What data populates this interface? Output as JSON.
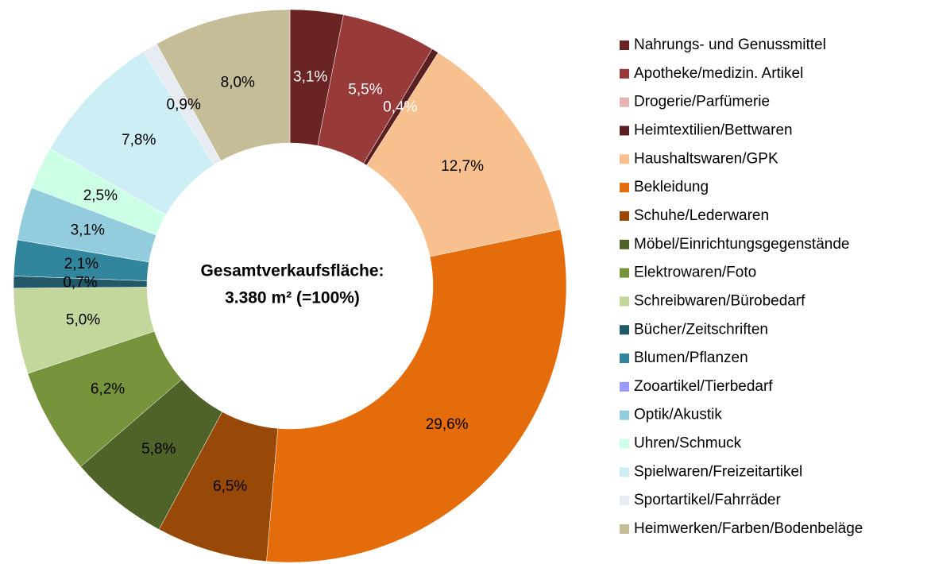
{
  "chart_data": {
    "type": "donut",
    "center_label": [
      "Gesamtverkaufsfläche:",
      "3.380 m² (=100%)"
    ],
    "categories": [
      "Nahrungs- und Genussmittel",
      "Apotheke/medizin. Artikel",
      "Drogerie/Parfümerie",
      "Heimtextilien/Bettwaren",
      "Haushaltswaren/GPK",
      "Bekleidung",
      "Schuhe/Lederwaren",
      "Möbel/Einrichtungsgegenstände",
      "Elektrowaren/Foto",
      "Schreibwaren/Bürobedarf",
      "Bücher/Zeitschriften",
      "Blumen/Pflanzen",
      "Zooartikel/Tierbedarf",
      "Optik/Akustik",
      "Uhren/Schmuck",
      "Spielwaren/Freizeitartikel",
      "Sportartikel/Fahrräder",
      "Heimwerken/Farben/Bodenbeläge"
    ],
    "values": [
      3.1,
      5.5,
      0,
      0.4,
      12.7,
      29.6,
      6.5,
      5.8,
      6.2,
      5.0,
      0.7,
      2.1,
      0,
      3.1,
      2.5,
      7.8,
      0.9,
      8.0
    ],
    "value_labels": [
      "3,1%",
      "5,5%",
      null,
      "0,4%",
      "12,7%",
      "29,6%",
      "6,5%",
      "5,8%",
      "6,2%",
      "5,0%",
      "0,7%",
      "2,1%",
      null,
      "3,1%",
      "2,5%",
      "7,8%",
      "0,9%",
      "8,0%"
    ],
    "colors": [
      "#6b2424",
      "#983a3a",
      "#e6b3b3",
      "#5a1f1f",
      "#f9c08f",
      "#e46c0a",
      "#984807",
      "#4f6228",
      "#77933c",
      "#c3d69b",
      "#215968",
      "#31859c",
      "#9999ff",
      "#93cddd",
      "#ccffe6",
      "#cdeef5",
      "#e6ecf2",
      "#c4bd97"
    ],
    "legend": "right"
  }
}
